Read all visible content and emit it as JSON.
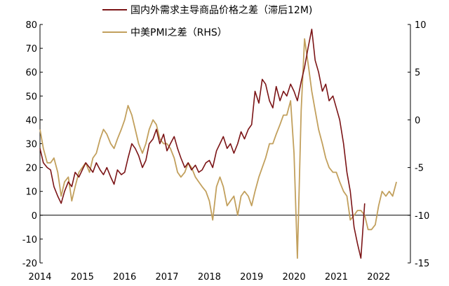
{
  "chart_data": {
    "type": "line",
    "legend": {
      "placement": "top",
      "entries": [
        {
          "label": "国内外需求主导商品价格之差（滞后12M)",
          "color": "#7b1416"
        },
        {
          "label": "中美PMI之差（RHS）",
          "color": "#c2a05d"
        }
      ]
    },
    "x_axis": {
      "range": [
        2014,
        2022.75
      ],
      "ticks": [
        "2014",
        "2015",
        "2016",
        "2017",
        "2018",
        "2019",
        "2020",
        "2021",
        "2022"
      ]
    },
    "y_left": {
      "range": [
        -20,
        80
      ],
      "ticks": [
        "-20",
        "-10",
        "0",
        "10",
        "20",
        "30",
        "40",
        "50",
        "60",
        "70",
        "80"
      ]
    },
    "y_right": {
      "range": [
        -15,
        10
      ],
      "ticks": [
        "-15",
        "-10",
        "-5",
        "0",
        "5",
        "10"
      ]
    },
    "series": [
      {
        "name": "国内外需求主导商品价格之差（滞后12M)",
        "axis": "left",
        "color": "#7b1416",
        "x": [
          2014.0,
          2014.08,
          2014.17,
          2014.25,
          2014.33,
          2014.42,
          2014.5,
          2014.58,
          2014.67,
          2014.75,
          2014.83,
          2014.92,
          2015.0,
          2015.08,
          2015.17,
          2015.25,
          2015.33,
          2015.42,
          2015.5,
          2015.58,
          2015.67,
          2015.75,
          2015.83,
          2015.92,
          2016.0,
          2016.08,
          2016.17,
          2016.25,
          2016.33,
          2016.42,
          2016.5,
          2016.58,
          2016.67,
          2016.75,
          2016.83,
          2016.92,
          2017.0,
          2017.08,
          2017.17,
          2017.25,
          2017.33,
          2017.42,
          2017.5,
          2017.58,
          2017.67,
          2017.75,
          2017.83,
          2017.92,
          2018.0,
          2018.08,
          2018.17,
          2018.25,
          2018.33,
          2018.42,
          2018.5,
          2018.58,
          2018.67,
          2018.75,
          2018.83,
          2018.92,
          2019.0,
          2019.08,
          2019.17,
          2019.25,
          2019.33,
          2019.42,
          2019.5,
          2019.58,
          2019.67,
          2019.75,
          2019.83,
          2019.92,
          2020.0,
          2020.08,
          2020.17,
          2020.25,
          2020.33,
          2020.42,
          2020.5,
          2020.58,
          2020.67,
          2020.75,
          2020.83,
          2020.92,
          2021.0,
          2021.08,
          2021.17,
          2021.25,
          2021.33,
          2021.42,
          2021.5,
          2021.58,
          2021.67
        ],
        "y": [
          28,
          22,
          20,
          19,
          12,
          8,
          5,
          10,
          14,
          12,
          18,
          16,
          19,
          22,
          20,
          18,
          22,
          19,
          17,
          20,
          16,
          13,
          19,
          17,
          18,
          24,
          30,
          28,
          25,
          20,
          23,
          30,
          32,
          36,
          30,
          34,
          27,
          30,
          33,
          28,
          24,
          20,
          22,
          19,
          21,
          18,
          19,
          22,
          23,
          20,
          27,
          30,
          33,
          28,
          30,
          26,
          30,
          35,
          32,
          36,
          38,
          52,
          47,
          57,
          55,
          48,
          45,
          54,
          48,
          52,
          50,
          55,
          52,
          48,
          56,
          62,
          70,
          78,
          65,
          60,
          52,
          55,
          48,
          50,
          45,
          40,
          30,
          18,
          10,
          -5,
          -12,
          -18,
          5
        ]
      },
      {
        "name": "中美PMI之差（RHS）",
        "axis": "right",
        "color": "#c2a05d",
        "x": [
          2014.0,
          2014.08,
          2014.17,
          2014.25,
          2014.33,
          2014.42,
          2014.5,
          2014.58,
          2014.67,
          2014.75,
          2014.83,
          2014.92,
          2015.0,
          2015.08,
          2015.17,
          2015.25,
          2015.33,
          2015.42,
          2015.5,
          2015.58,
          2015.67,
          2015.75,
          2015.83,
          2015.92,
          2016.0,
          2016.08,
          2016.17,
          2016.25,
          2016.33,
          2016.42,
          2016.5,
          2016.58,
          2016.67,
          2016.75,
          2016.83,
          2016.92,
          2017.0,
          2017.08,
          2017.17,
          2017.25,
          2017.33,
          2017.42,
          2017.5,
          2017.58,
          2017.67,
          2017.75,
          2017.83,
          2017.92,
          2018.0,
          2018.08,
          2018.17,
          2018.25,
          2018.33,
          2018.42,
          2018.5,
          2018.58,
          2018.67,
          2018.75,
          2018.83,
          2018.92,
          2019.0,
          2019.08,
          2019.17,
          2019.25,
          2019.33,
          2019.42,
          2019.5,
          2019.58,
          2019.67,
          2019.75,
          2019.83,
          2019.92,
          2020.0,
          2020.08,
          2020.17,
          2020.25,
          2020.33,
          2020.42,
          2020.5,
          2020.58,
          2020.67,
          2020.75,
          2020.83,
          2020.92,
          2021.0,
          2021.08,
          2021.17,
          2021.25,
          2021.33,
          2021.42,
          2021.5,
          2021.58,
          2021.67,
          2021.75,
          2021.83,
          2021.92,
          2022.0,
          2022.08,
          2022.17,
          2022.25,
          2022.33,
          2022.42
        ],
        "y": [
          -1,
          -3,
          -4.5,
          -4.5,
          -4,
          -5.5,
          -8,
          -6.5,
          -6,
          -8.5,
          -7,
          -5.5,
          -5,
          -4.5,
          -5.5,
          -4,
          -3.5,
          -2,
          -1,
          -1.5,
          -2.5,
          -3,
          -2,
          -1,
          0,
          1.5,
          0.5,
          -1,
          -2.5,
          -3.5,
          -2.5,
          -1,
          0,
          -0.5,
          -2,
          -2.5,
          -2.5,
          -3,
          -4,
          -5.5,
          -6,
          -5.5,
          -4.5,
          -5,
          -6,
          -6.5,
          -7,
          -7.5,
          -8.5,
          -10.5,
          -7,
          -6,
          -7,
          -9,
          -8.5,
          -8,
          -10,
          -8,
          -7.5,
          -8,
          -9,
          -7.5,
          -6,
          -5,
          -4,
          -2.5,
          -2.5,
          -1.5,
          -0.5,
          0.5,
          0.5,
          2,
          -3.5,
          -14.5,
          1,
          8.5,
          6,
          3,
          1,
          -1,
          -2.5,
          -4,
          -5,
          -5.5,
          -5.5,
          -6.5,
          -7.5,
          -8,
          -10.5,
          -10,
          -9.5,
          -9.5,
          -10,
          -11.5,
          -11.5,
          -11,
          -9,
          -7.5,
          -8,
          -7.5,
          -8,
          -6.5
        ]
      }
    ]
  }
}
